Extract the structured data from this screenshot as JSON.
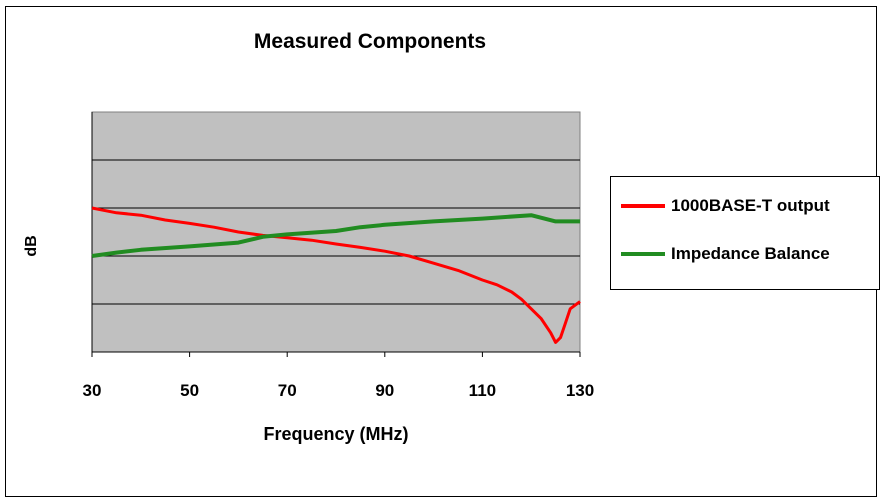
{
  "chart_data": {
    "type": "line",
    "title": "Measured Components",
    "xlabel": "Frequency (MHz)",
    "ylabel": "dB",
    "xlim": [
      30,
      130
    ],
    "ylim": [
      0,
      5
    ],
    "xticks": [
      30,
      50,
      70,
      90,
      110,
      130
    ],
    "grid": true,
    "legend_position": "right",
    "series": [
      {
        "name": "1000BASE-T output",
        "color": "#ff0000",
        "x": [
          30,
          35,
          40,
          45,
          50,
          55,
          60,
          65,
          70,
          75,
          80,
          85,
          90,
          95,
          100,
          105,
          110,
          113,
          116,
          118,
          120,
          122,
          124,
          125,
          126,
          127,
          128,
          130
        ],
        "y": [
          3.0,
          2.9,
          2.85,
          2.75,
          2.68,
          2.6,
          2.5,
          2.43,
          2.38,
          2.33,
          2.25,
          2.18,
          2.1,
          2.0,
          1.85,
          1.7,
          1.5,
          1.4,
          1.25,
          1.1,
          0.9,
          0.7,
          0.4,
          0.2,
          0.3,
          0.6,
          0.9,
          1.05
        ]
      },
      {
        "name": "Impedance Balance",
        "color": "#218c21",
        "x": [
          30,
          35,
          40,
          50,
          60,
          65,
          70,
          80,
          85,
          90,
          100,
          110,
          120,
          125,
          130
        ],
        "y": [
          2.0,
          2.07,
          2.13,
          2.2,
          2.28,
          2.4,
          2.45,
          2.52,
          2.6,
          2.65,
          2.72,
          2.78,
          2.85,
          2.72,
          2.72
        ]
      }
    ]
  },
  "colors": {
    "plot_background": "#c0c0c0",
    "gridline": "#000000"
  }
}
